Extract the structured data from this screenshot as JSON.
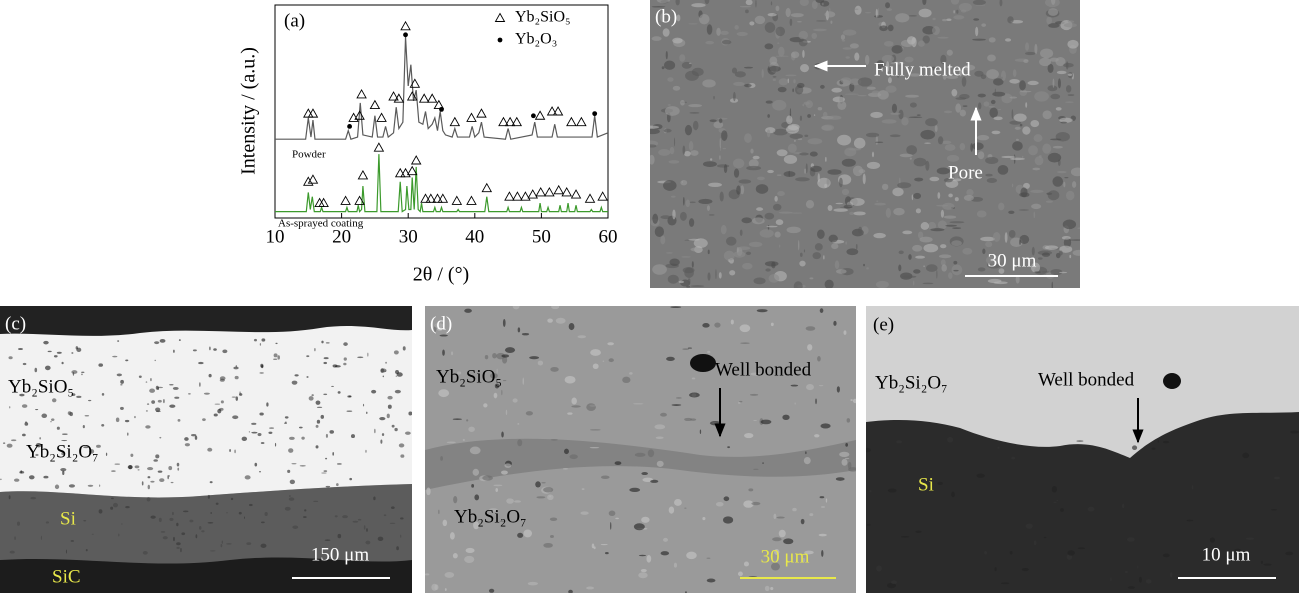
{
  "chart_data": {
    "type": "line",
    "panel_label": "(a)",
    "xlabel": "2θ / (°)",
    "ylabel": "Intensity / (a.u.)",
    "xlim": [
      10,
      60
    ],
    "xticks": [
      10,
      20,
      30,
      40,
      50,
      60
    ],
    "ylim": [
      0,
      100
    ],
    "series": [
      {
        "name": "Powder",
        "color": "#5a5a5a",
        "x": [
          10,
          14.6,
          15,
          15.4,
          15.7,
          16,
          20.6,
          21,
          21.4,
          22.4,
          22.8,
          23.2,
          24.6,
          25,
          25.4,
          26.2,
          26.6,
          27,
          27.8,
          28.2,
          28.6,
          29.2,
          29.6,
          30,
          30.4,
          30.8,
          31.2,
          31.6,
          32.2,
          32.6,
          33,
          33.6,
          34,
          34.4,
          34.8,
          35.2,
          35.6,
          36.6,
          37,
          37.4,
          39.2,
          39.6,
          40,
          40.6,
          41,
          41.4,
          44.6,
          45,
          45.4,
          48.6,
          49,
          49.4,
          51.6,
          52,
          52.4,
          57.6,
          58,
          58.4,
          60
        ],
        "values": [
          37,
          37,
          47,
          38,
          46,
          37,
          37,
          41,
          37,
          38,
          54,
          39,
          38,
          48,
          38,
          38,
          43,
          38,
          40,
          52,
          42,
          45,
          85,
          62,
          72,
          55,
          60,
          45,
          44,
          50,
          42,
          44,
          47,
          41,
          50,
          41,
          39,
          38,
          42,
          38,
          38,
          43,
          38,
          40,
          45,
          38,
          37,
          42,
          37,
          39,
          45,
          38,
          38,
          44,
          38,
          38,
          48,
          38,
          40
        ]
      },
      {
        "name": "As-sprayed coating",
        "color": "#3c9a2c",
        "x": [
          10,
          14.7,
          15,
          15.3,
          15.6,
          15.9,
          16.8,
          17,
          17.2,
          20.6,
          20.8,
          21,
          22.3,
          22.5,
          22.7,
          23,
          23.2,
          23.5,
          25.3,
          25.6,
          25.9,
          28.5,
          28.8,
          29.1,
          29.6,
          29.8,
          30.1,
          30.4,
          30.6,
          30.9,
          31.2,
          31.5,
          31.8,
          32,
          32.2,
          33.8,
          34,
          34.2,
          34.8,
          35,
          35.2,
          37.3,
          37.5,
          37.7,
          41.5,
          41.8,
          42.1,
          44.8,
          45,
          45.2,
          46.8,
          47,
          47.2,
          49.6,
          49.8,
          50,
          50.8,
          51,
          51.2,
          52.6,
          52.8,
          53,
          53.8,
          54,
          54.2,
          55,
          55.2,
          55.4,
          57.3,
          57.5,
          57.7,
          58.8,
          59,
          59.2,
          60
        ],
        "values": [
          3,
          3,
          12,
          4,
          10,
          3,
          3,
          5,
          3,
          3,
          5,
          3,
          3,
          6,
          3,
          4,
          15,
          3,
          3,
          30,
          3,
          3,
          17,
          3,
          4,
          15,
          4,
          4,
          19,
          4,
          24,
          4,
          3,
          7,
          3,
          3,
          5,
          3,
          3,
          5,
          3,
          3,
          4,
          3,
          3,
          10,
          3,
          3,
          5,
          3,
          3,
          5,
          3,
          3,
          7,
          3,
          3,
          5,
          3,
          3,
          6,
          3,
          3,
          7,
          3,
          3,
          6,
          3,
          3,
          4,
          3,
          3,
          5,
          3,
          3
        ]
      }
    ],
    "peak_markers": [
      {
        "name": "Yb₂SiO₅",
        "symbol": "triangle",
        "x": [
          15,
          15.7,
          21.8,
          22.7,
          23,
          25,
          26,
          27.8,
          28.6,
          29.6,
          30.6,
          31,
          32.4,
          33.6,
          34.6,
          37,
          39.5,
          41,
          44.3,
          45.3,
          46.3,
          49.8,
          51.6,
          52.5,
          54.5,
          56,
          15,
          15.7,
          16.7,
          17.3,
          20.6,
          22.7,
          23.2,
          25.6,
          28.8,
          29.6,
          30.6,
          31.2,
          32.6,
          33.4,
          34.4,
          35.2,
          37.3,
          39.5,
          41.8,
          45.2,
          46.4,
          47.6,
          48.7,
          49.9,
          51.2,
          52.6,
          53.8,
          55.2,
          57.3,
          59.2
        ],
        "y": [
          49,
          49,
          47,
          48,
          58,
          53,
          47,
          57,
          56,
          90,
          57,
          63,
          56,
          56,
          53,
          45,
          47,
          49,
          45,
          45,
          45,
          48,
          50,
          50,
          45,
          45,
          17,
          18,
          7,
          7,
          8,
          8,
          20,
          33,
          21,
          21,
          22,
          27,
          9,
          9,
          9,
          9,
          8,
          8,
          14,
          10,
          10,
          10,
          11,
          12,
          12,
          13,
          12,
          11,
          9,
          10
        ]
      },
      {
        "name": "Yb₂O₃",
        "symbol": "dot",
        "x": [
          21.2,
          29.6,
          35,
          48.8,
          58
        ],
        "y": [
          43,
          86,
          51,
          48,
          49
        ]
      }
    ]
  },
  "panels": [
    {
      "label": "(b)",
      "annotations": [
        "Fully melted",
        "Pore"
      ],
      "scale_bar": "30 μm"
    },
    {
      "label": "(c)",
      "annotations": [
        "Yb₂SiO₅",
        "Yb₂Si₂O₇",
        "Si",
        "SiC"
      ],
      "scale_bar": "150 μm"
    },
    {
      "label": "(d)",
      "annotations": [
        "Yb₂SiO₅",
        "Well bonded",
        "Yb₂Si₂O₇"
      ],
      "scale_bar": "30 μm"
    },
    {
      "label": "(e)",
      "annotations": [
        "Yb₂Si₂O₇",
        "Well bonded",
        "Si"
      ],
      "scale_bar": "10 μm"
    }
  ]
}
